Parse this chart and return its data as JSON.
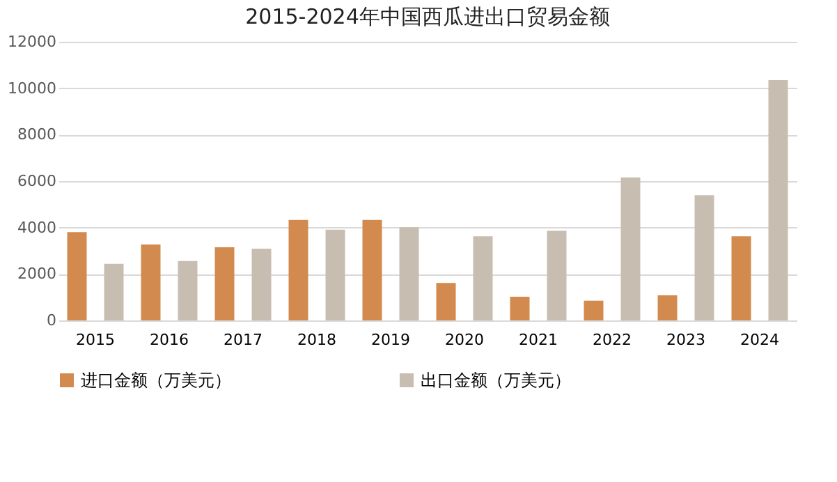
{
  "chart_data": {
    "type": "bar",
    "title": "2015-2024年中国西瓜进出口贸易金额",
    "categories": [
      "2015",
      "2016",
      "2017",
      "2018",
      "2019",
      "2020",
      "2021",
      "2022",
      "2023",
      "2024"
    ],
    "series": [
      {
        "name": "进口金额（万美元）",
        "color": "#d38a4e",
        "values": [
          3800,
          3270,
          3150,
          4330,
          4330,
          1610,
          1020,
          850,
          1080,
          3620
        ]
      },
      {
        "name": "出口金额（万美元）",
        "color": "#c8bdb1",
        "values": [
          2440,
          2560,
          3090,
          3910,
          4010,
          3620,
          3860,
          6160,
          5390,
          10350
        ]
      }
    ],
    "ylim": [
      0,
      12000
    ],
    "yticks": [
      0,
      2000,
      4000,
      6000,
      8000,
      10000,
      12000
    ],
    "grid": "y",
    "legend": "bottom"
  }
}
